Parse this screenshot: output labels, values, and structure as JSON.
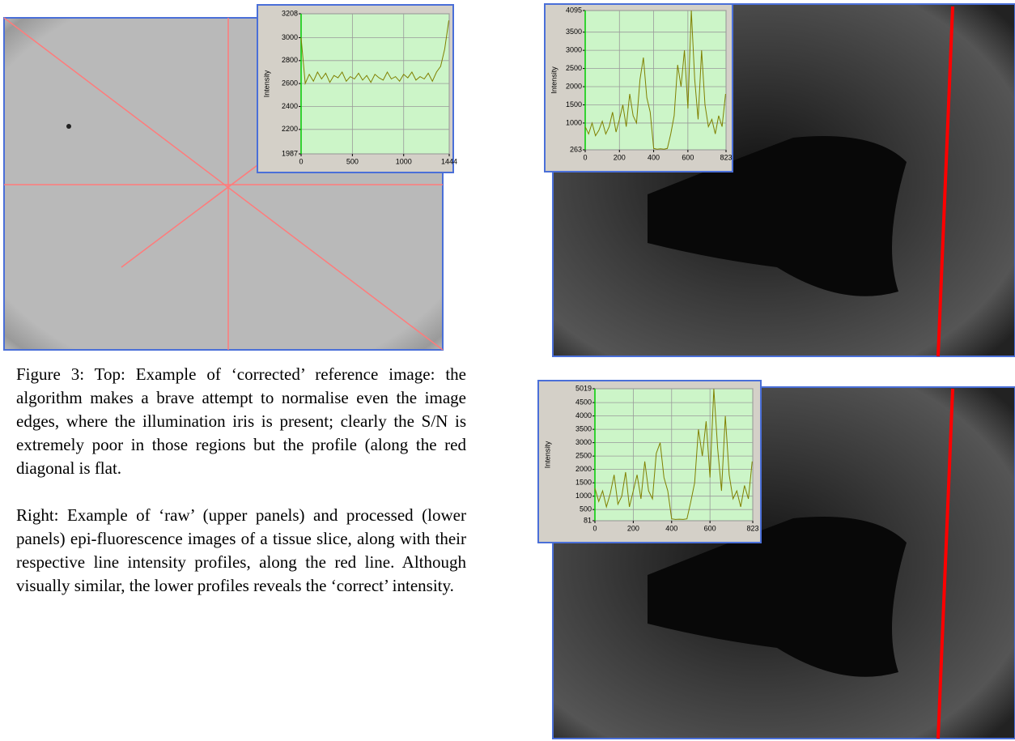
{
  "chart_data": [
    {
      "type": "line",
      "ylabel": "Intensity",
      "color": "#808000",
      "grid": true,
      "x": [
        0,
        40,
        80,
        120,
        160,
        200,
        240,
        280,
        320,
        360,
        400,
        440,
        480,
        520,
        560,
        600,
        640,
        680,
        720,
        760,
        800,
        840,
        880,
        920,
        960,
        1000,
        1040,
        1080,
        1120,
        1160,
        1200,
        1240,
        1280,
        1320,
        1360,
        1400,
        1440
      ],
      "values": [
        3000,
        2600,
        2680,
        2620,
        2700,
        2640,
        2690,
        2610,
        2670,
        2650,
        2700,
        2620,
        2660,
        2640,
        2690,
        2630,
        2670,
        2610,
        2680,
        2650,
        2630,
        2700,
        2640,
        2660,
        2620,
        2680,
        2650,
        2700,
        2630,
        2660,
        2640,
        2690,
        2620,
        2700,
        2750,
        2900,
        3150
      ],
      "xlim": [
        0,
        1444
      ],
      "ylim": [
        1987,
        3208
      ],
      "xticks": [
        0,
        500,
        1000,
        1444
      ],
      "yticks": [
        1987,
        2200,
        2400,
        2600,
        2800,
        3000,
        3208
      ]
    },
    {
      "type": "line",
      "ylabel": "Intensity",
      "color": "#808000",
      "grid": true,
      "x": [
        0,
        20,
        40,
        60,
        80,
        100,
        120,
        140,
        160,
        180,
        200,
        220,
        240,
        260,
        280,
        300,
        320,
        340,
        360,
        380,
        400,
        420,
        440,
        460,
        480,
        500,
        520,
        540,
        560,
        580,
        600,
        620,
        640,
        660,
        680,
        700,
        720,
        740,
        760,
        780,
        800,
        820
      ],
      "values": [
        900,
        700,
        1000,
        650,
        800,
        1050,
        700,
        900,
        1300,
        750,
        1100,
        1500,
        900,
        1800,
        1200,
        1000,
        2200,
        2800,
        1700,
        1300,
        300,
        280,
        290,
        280,
        300,
        700,
        1200,
        2600,
        2000,
        3000,
        1400,
        4095,
        2200,
        1100,
        3000,
        1500,
        900,
        1100,
        700,
        1200,
        900,
        1800
      ],
      "xlim": [
        0,
        823
      ],
      "ylim": [
        263,
        4095
      ],
      "xticks": [
        0,
        200,
        400,
        600,
        823
      ],
      "yticks": [
        263,
        1000,
        1500,
        2000,
        2500,
        3000,
        3500,
        4095
      ]
    },
    {
      "type": "line",
      "ylabel": "Intensity",
      "color": "#808000",
      "grid": true,
      "x": [
        0,
        20,
        40,
        60,
        80,
        100,
        120,
        140,
        160,
        180,
        200,
        220,
        240,
        260,
        280,
        300,
        320,
        340,
        360,
        380,
        400,
        420,
        440,
        460,
        480,
        500,
        520,
        540,
        560,
        580,
        600,
        620,
        640,
        660,
        680,
        700,
        720,
        740,
        760,
        780,
        800,
        820
      ],
      "values": [
        1300,
        800,
        1200,
        600,
        1100,
        1800,
        700,
        1000,
        1900,
        600,
        1200,
        1800,
        900,
        2300,
        1200,
        900,
        2600,
        3000,
        1700,
        1200,
        150,
        130,
        140,
        130,
        150,
        800,
        1500,
        3500,
        2500,
        3800,
        1700,
        5019,
        2800,
        1200,
        4000,
        1800,
        900,
        1200,
        600,
        1400,
        900,
        2300
      ],
      "xlim": [
        0,
        823
      ],
      "ylim": [
        81,
        5019
      ],
      "xticks": [
        0,
        200,
        400,
        600,
        823
      ],
      "yticks": [
        81,
        500,
        1000,
        1500,
        2000,
        2500,
        3000,
        3500,
        4000,
        4500,
        5019
      ]
    }
  ],
  "caption": {
    "paragraphs": [
      "Figure 3: Top: Example of ‘corrected’ reference image: the algorithm makes a brave attempt to normalise even the image edges, where the illumination iris is present; clearly the S/N is extremely poor in those regions but the profile (along the red diagonal is flat.",
      "Right: Example of ‘raw’ (upper panels) and processed (lower panels) epi-fluorescence images of a tissue slice, along with their respective line intensity profiles, along the red line. Although visually similar, the lower profiles reveals the ‘correct’ intensity."
    ]
  }
}
